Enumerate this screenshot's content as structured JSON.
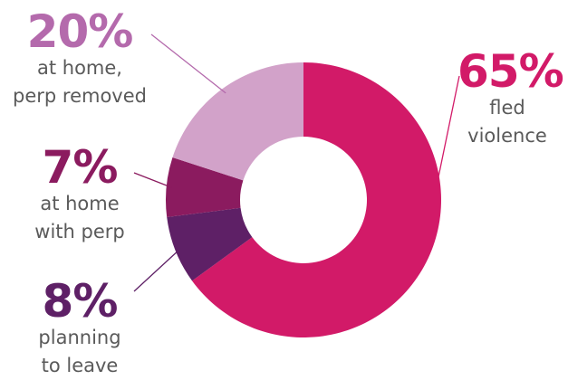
{
  "chart_data": {
    "type": "pie",
    "slices": [
      {
        "value": 65,
        "pct_label": "65%",
        "lines": [
          "fled",
          "violence"
        ],
        "color": "#d21a68",
        "pct_color": "#d21a68"
      },
      {
        "value": 8,
        "pct_label": "8%",
        "lines": [
          "planning",
          "to leave"
        ],
        "color": "#5e2066",
        "pct_color": "#5e2066"
      },
      {
        "value": 7,
        "pct_label": "7%",
        "lines": [
          "at home",
          "with perp"
        ],
        "color": "#8b1b5f",
        "pct_color": "#8b1b5f"
      },
      {
        "value": 20,
        "pct_label": "20%",
        "lines": [
          "at home,",
          "perp removed"
        ],
        "color": "#d2a2c9",
        "pct_color": "#b46aac"
      }
    ]
  }
}
